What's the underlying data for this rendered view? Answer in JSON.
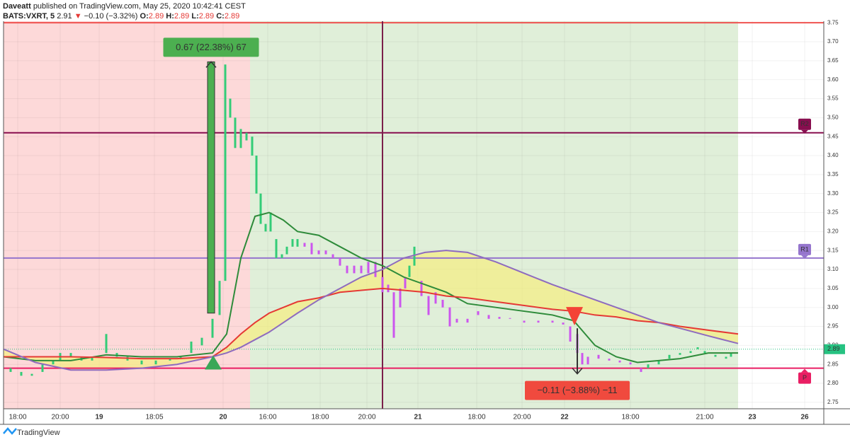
{
  "header": {
    "author": "Daveatt",
    "published": "published on TradingView.com, May 25, 2020 10:42:41 CEST",
    "symbol": "BATS:VXRT, 5",
    "price": "2.91",
    "arrow": "▼",
    "change": "−0.10 (−3.32%)",
    "o_label": "O:",
    "o": "2.89",
    "h_label": "H:",
    "h": "2.89",
    "l_label": "L:",
    "l": "2.89",
    "c_label": "C:",
    "c": "2.89"
  },
  "footer": {
    "brand": "TradingView"
  },
  "chart_data": {
    "type": "candlestick",
    "xlim": [
      5,
      1163
    ],
    "ylim": [
      2.733,
      3.754
    ],
    "grid": true,
    "xticks": [
      {
        "value": 25,
        "label": "18:00"
      },
      {
        "value": 85,
        "label": "20:00"
      },
      {
        "value": 140,
        "label": "19"
      },
      {
        "value": 218,
        "label": "18:05"
      },
      {
        "value": 315,
        "label": "20"
      },
      {
        "value": 378,
        "label": "16:00"
      },
      {
        "value": 452,
        "label": "18:00"
      },
      {
        "value": 518,
        "label": "20:00"
      },
      {
        "value": 590,
        "label": "21"
      },
      {
        "value": 673,
        "label": "18:00"
      },
      {
        "value": 737,
        "label": "20:00"
      },
      {
        "value": 797,
        "label": "22"
      },
      {
        "value": 890,
        "label": "18:00"
      },
      {
        "value": 995,
        "label": "21:00"
      },
      {
        "value": 1062,
        "label": "23"
      },
      {
        "value": 1136,
        "label": "26"
      }
    ],
    "yticks": [
      2.75,
      {
        "value": 2.8,
        "label": "2.80"
      },
      2.85,
      {
        "value": 2.9,
        "label": "2.90"
      },
      2.95,
      {
        "value": 3.0,
        "label": "3.00"
      },
      3.05,
      {
        "value": 3.1,
        "label": "3.10"
      },
      3.15,
      {
        "value": 3.2,
        "label": "3.20"
      },
      3.25,
      {
        "value": 3.3,
        "label": "3.30"
      },
      3.35,
      {
        "value": 3.4,
        "label": "3.40"
      },
      3.45,
      {
        "value": 3.5,
        "label": "3.50"
      },
      3.55,
      {
        "value": 3.6,
        "label": "3.60"
      },
      3.65,
      {
        "value": 3.7,
        "label": "3.70"
      },
      3.75
    ],
    "zones": [
      {
        "from": 5,
        "to": 353,
        "color": "#fdd9d9"
      },
      {
        "from": 353,
        "to": 1042,
        "color": "#e0efd9"
      }
    ],
    "candles": [
      {
        "x": 15,
        "open": 2.84,
        "close": 2.83,
        "color": "#33cc77"
      },
      {
        "x": 30,
        "open": 2.83,
        "close": 2.82,
        "color": "#33cc77"
      },
      {
        "x": 45,
        "open": 2.82,
        "close": 2.825,
        "color": "#33cc77"
      },
      {
        "x": 60,
        "open": 2.83,
        "close": 2.85,
        "color": "#33cc77"
      },
      {
        "x": 75,
        "open": 2.85,
        "close": 2.86,
        "color": "#33cc77"
      },
      {
        "x": 85,
        "open": 2.86,
        "close": 2.88,
        "color": "#33cc77"
      },
      {
        "x": 100,
        "open": 2.88,
        "close": 2.87,
        "color": "#33cc77"
      },
      {
        "x": 115,
        "open": 2.87,
        "close": 2.86,
        "color": "#33cc77"
      },
      {
        "x": 130,
        "open": 2.86,
        "close": 2.87,
        "color": "#33cc77"
      },
      {
        "x": 150,
        "open": 2.88,
        "close": 2.93,
        "color": "#33cc77"
      },
      {
        "x": 165,
        "open": 2.88,
        "close": 2.87,
        "color": "#33cc77"
      },
      {
        "x": 180,
        "open": 2.87,
        "close": 2.86,
        "color": "#33cc77"
      },
      {
        "x": 200,
        "open": 2.86,
        "close": 2.85,
        "color": "#33cc77"
      },
      {
        "x": 220,
        "open": 2.85,
        "close": 2.86,
        "color": "#33cc77"
      },
      {
        "x": 240,
        "open": 2.86,
        "close": 2.865,
        "color": "#33cc77"
      },
      {
        "x": 255,
        "open": 2.865,
        "close": 2.87,
        "color": "#33cc77"
      },
      {
        "x": 270,
        "open": 2.88,
        "close": 2.91,
        "color": "#33cc77"
      },
      {
        "x": 285,
        "open": 2.9,
        "close": 2.92,
        "color": "#33cc77"
      },
      {
        "x": 300,
        "open": 2.92,
        "close": 2.97,
        "color": "#33cc77"
      },
      {
        "x": 310,
        "open": 2.98,
        "close": 3.07,
        "color": "#33cc77"
      },
      {
        "x": 318,
        "open": 3.07,
        "close": 3.64,
        "color": "#33cc77"
      },
      {
        "x": 325,
        "open": 3.55,
        "close": 3.5,
        "color": "#33cc77"
      },
      {
        "x": 332,
        "open": 3.5,
        "close": 3.42,
        "color": "#33cc77"
      },
      {
        "x": 340,
        "open": 3.42,
        "close": 3.47,
        "color": "#33cc77"
      },
      {
        "x": 348,
        "open": 3.44,
        "close": 3.46,
        "color": "#33cc77"
      },
      {
        "x": 356,
        "open": 3.45,
        "close": 3.4,
        "color": "#33cc77"
      },
      {
        "x": 362,
        "open": 3.4,
        "close": 3.3,
        "color": "#33cc77"
      },
      {
        "x": 368,
        "open": 3.3,
        "close": 3.22,
        "color": "#33cc77"
      },
      {
        "x": 375,
        "open": 3.22,
        "close": 3.2,
        "color": "#33cc77"
      },
      {
        "x": 382,
        "open": 3.2,
        "close": 3.25,
        "color": "#33cc77"
      },
      {
        "x": 390,
        "open": 3.18,
        "close": 3.13,
        "color": "#33cc77"
      },
      {
        "x": 398,
        "open": 3.13,
        "close": 3.14,
        "color": "#33cc77"
      },
      {
        "x": 405,
        "open": 3.14,
        "close": 3.16,
        "color": "#33cc77"
      },
      {
        "x": 413,
        "open": 3.16,
        "close": 3.18,
        "color": "#33cc77"
      },
      {
        "x": 420,
        "open": 3.18,
        "close": 3.16,
        "color": "#33cc77"
      },
      {
        "x": 430,
        "open": 3.16,
        "close": 3.17,
        "color": "#cc55ee"
      },
      {
        "x": 440,
        "open": 3.17,
        "close": 3.14,
        "color": "#cc55ee"
      },
      {
        "x": 450,
        "open": 3.14,
        "close": 3.15,
        "color": "#cc55ee"
      },
      {
        "x": 460,
        "open": 3.15,
        "close": 3.14,
        "color": "#cc55ee"
      },
      {
        "x": 470,
        "open": 3.14,
        "close": 3.13,
        "color": "#cc55ee"
      },
      {
        "x": 480,
        "open": 3.13,
        "close": 3.11,
        "color": "#cc55ee"
      },
      {
        "x": 490,
        "open": 3.11,
        "close": 3.09,
        "color": "#cc55ee"
      },
      {
        "x": 500,
        "open": 3.09,
        "close": 3.11,
        "color": "#cc55ee"
      },
      {
        "x": 510,
        "open": 3.11,
        "close": 3.09,
        "color": "#cc55ee"
      },
      {
        "x": 520,
        "open": 3.09,
        "close": 3.12,
        "color": "#cc55ee"
      },
      {
        "x": 530,
        "open": 3.12,
        "close": 3.08,
        "color": "#cc55ee"
      },
      {
        "x": 540,
        "open": 3.08,
        "close": 3.04,
        "color": "#cc55ee"
      },
      {
        "x": 548,
        "open": 3.04,
        "close": 3.06,
        "color": "#cc55ee"
      },
      {
        "x": 556,
        "open": 3.04,
        "close": 2.92,
        "color": "#cc55ee"
      },
      {
        "x": 565,
        "open": 3.0,
        "close": 3.05,
        "color": "#cc55ee"
      },
      {
        "x": 572,
        "open": 3.05,
        "close": 3.08,
        "color": "#cc55ee"
      },
      {
        "x": 578,
        "open": 3.08,
        "close": 3.11,
        "color": "#33cc77"
      },
      {
        "x": 585,
        "open": 3.11,
        "close": 3.16,
        "color": "#33cc77"
      },
      {
        "x": 595,
        "open": 3.07,
        "close": 3.03,
        "color": "#cc55ee"
      },
      {
        "x": 605,
        "open": 3.03,
        "close": 2.98,
        "color": "#cc55ee"
      },
      {
        "x": 615,
        "open": 3.01,
        "close": 3.04,
        "color": "#cc55ee"
      },
      {
        "x": 625,
        "open": 3.02,
        "close": 3.0,
        "color": "#cc55ee"
      },
      {
        "x": 635,
        "open": 3.0,
        "close": 2.95,
        "color": "#cc55ee"
      },
      {
        "x": 645,
        "open": 2.97,
        "close": 2.96,
        "color": "#cc55ee"
      },
      {
        "x": 660,
        "open": 2.96,
        "close": 2.97,
        "color": "#cc55ee"
      },
      {
        "x": 675,
        "open": 2.99,
        "close": 2.98,
        "color": "#cc55ee"
      },
      {
        "x": 690,
        "open": 2.98,
        "close": 2.97,
        "color": "#cc55ee"
      },
      {
        "x": 705,
        "open": 2.97,
        "close": 2.975,
        "color": "#cc55ee"
      },
      {
        "x": 720,
        "open": 2.97,
        "close": 2.972,
        "color": "#cc55ee"
      },
      {
        "x": 740,
        "open": 2.965,
        "close": 2.96,
        "color": "#cc55ee"
      },
      {
        "x": 760,
        "open": 2.96,
        "close": 2.965,
        "color": "#cc55ee"
      },
      {
        "x": 780,
        "open": 2.965,
        "close": 2.96,
        "color": "#cc55ee"
      },
      {
        "x": 795,
        "open": 2.96,
        "close": 2.955,
        "color": "#cc55ee"
      },
      {
        "x": 805,
        "open": 2.95,
        "close": 2.91,
        "color": "#cc55ee"
      },
      {
        "x": 815,
        "open": 2.93,
        "close": 2.88,
        "color": "#cc55ee"
      },
      {
        "x": 822,
        "open": 2.88,
        "close": 2.85,
        "color": "#cc55ee"
      },
      {
        "x": 830,
        "open": 2.85,
        "close": 2.87,
        "color": "#cc55ee"
      },
      {
        "x": 845,
        "open": 2.875,
        "close": 2.865,
        "color": "#cc55ee"
      },
      {
        "x": 860,
        "open": 2.865,
        "close": 2.86,
        "color": "#cc55ee"
      },
      {
        "x": 875,
        "open": 2.86,
        "close": 2.855,
        "color": "#cc55ee"
      },
      {
        "x": 890,
        "open": 2.855,
        "close": 2.85,
        "color": "#cc55ee"
      },
      {
        "x": 905,
        "open": 2.84,
        "close": 2.83,
        "color": "#cc55ee"
      },
      {
        "x": 915,
        "open": 2.84,
        "close": 2.85,
        "color": "#33cc77"
      },
      {
        "x": 930,
        "open": 2.85,
        "close": 2.86,
        "color": "#33cc77"
      },
      {
        "x": 945,
        "open": 2.865,
        "close": 2.875,
        "color": "#33cc77"
      },
      {
        "x": 960,
        "open": 2.875,
        "close": 2.88,
        "color": "#33cc77"
      },
      {
        "x": 975,
        "open": 2.88,
        "close": 2.885,
        "color": "#33cc77"
      },
      {
        "x": 985,
        "open": 2.89,
        "close": 2.895,
        "color": "#33cc77"
      },
      {
        "x": 995,
        "open": 2.885,
        "close": 2.88,
        "color": "#33cc77"
      },
      {
        "x": 1010,
        "open": 2.875,
        "close": 2.87,
        "color": "#33cc77"
      },
      {
        "x": 1025,
        "open": 2.865,
        "close": 2.87,
        "color": "#33cc77"
      },
      {
        "x": 1032,
        "open": 2.87,
        "close": 2.88,
        "color": "#33cc77"
      }
    ],
    "x": [
      5,
      50,
      100,
      150,
      200,
      250,
      300,
      320,
      340,
      360,
      380,
      400,
      420,
      450,
      480,
      510,
      540,
      570,
      600,
      630,
      660,
      700,
      740,
      780,
      810,
      840,
      870,
      900,
      930,
      960,
      1000,
      1042
    ],
    "series": [
      {
        "color": "#2e8b3a",
        "values": [
          2.87,
          2.86,
          2.86,
          2.875,
          2.87,
          2.87,
          2.88,
          2.93,
          3.13,
          3.24,
          3.25,
          3.23,
          3.2,
          3.19,
          3.16,
          3.13,
          3.11,
          3.08,
          3.06,
          3.04,
          3.01,
          3.0,
          2.99,
          2.98,
          2.965,
          2.9,
          2.87,
          2.855,
          2.86,
          2.865,
          2.88,
          2.88
        ]
      },
      {
        "color": "#e53935",
        "values": [
          2.87,
          2.87,
          2.87,
          2.868,
          2.865,
          2.865,
          2.87,
          2.895,
          2.93,
          2.96,
          2.985,
          3.0,
          3.015,
          3.025,
          3.04,
          3.045,
          3.05,
          3.045,
          3.04,
          3.03,
          3.025,
          3.015,
          3.005,
          2.995,
          2.99,
          2.98,
          2.975,
          2.965,
          2.96,
          2.95,
          2.94,
          2.93
        ]
      },
      {
        "color": "#8e6bbf",
        "values": [
          2.89,
          2.855,
          2.835,
          2.835,
          2.84,
          2.85,
          2.87,
          2.88,
          2.895,
          2.915,
          2.935,
          2.96,
          2.985,
          3.02,
          3.05,
          3.08,
          3.1,
          3.13,
          3.145,
          3.15,
          3.145,
          3.12,
          3.09,
          3.06,
          3.04,
          3.02,
          3.0,
          2.98,
          2.96,
          2.945,
          2.925,
          2.905
        ]
      }
    ],
    "fill_color": "#f5ee80",
    "ceiling": {
      "value": 3.75,
      "color": "#ef5350"
    },
    "levels": [
      {
        "label": "R2",
        "value": 3.46,
        "color": "#880e4f"
      },
      {
        "label": "R1",
        "value": 3.13,
        "color": "#9575cd"
      },
      {
        "label": "P",
        "value": 2.84,
        "color": "#e91e63"
      }
    ],
    "crosshair_x": 540,
    "last_price": {
      "value": 2.89,
      "label": "2.89",
      "color": "#26c281"
    },
    "signals": [
      {
        "x": 301,
        "value": 2.855,
        "direction": "up",
        "color": "#3aa757"
      },
      {
        "x": 811,
        "value": 2.975,
        "direction": "down",
        "color": "#f44336"
      }
    ],
    "measures": [
      {
        "x": 298,
        "from": 2.985,
        "to": 3.647,
        "label": "0.67 (22.38%) 67",
        "color": "#4caf50"
      },
      {
        "x": 815,
        "from": 2.945,
        "to": 2.825,
        "label": "−0.11 (−3.88%) −11",
        "color": "#f04a3e"
      }
    ]
  }
}
